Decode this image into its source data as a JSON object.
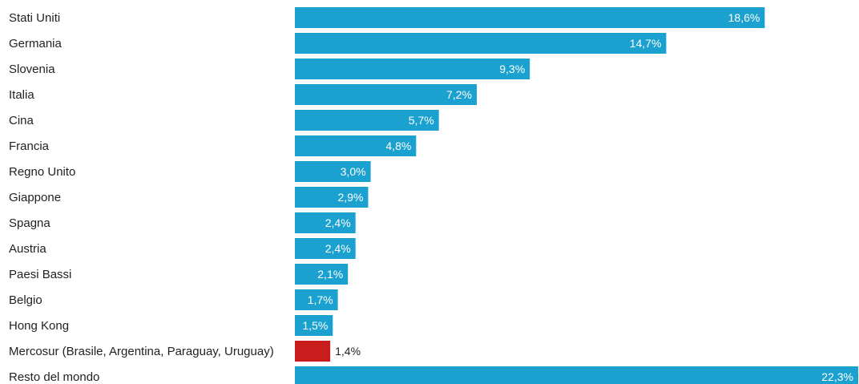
{
  "chart_data": {
    "type": "bar",
    "orientation": "horizontal",
    "title": "",
    "xlabel": "",
    "ylabel": "",
    "xlim": [
      0,
      22.3
    ],
    "grid": false,
    "legend": "none",
    "categories": [
      "Stati Uniti",
      "Germania",
      "Slovenia",
      "Italia",
      "Cina",
      "Francia",
      "Regno Unito",
      "Giappone",
      "Spagna",
      "Austria",
      "Paesi Bassi",
      "Belgio",
      "Hong Kong",
      "Mercosur (Brasile, Argentina, Paraguay, Uruguay)",
      "Resto del mondo"
    ],
    "values": [
      18.6,
      14.7,
      9.3,
      7.2,
      5.7,
      4.8,
      3.0,
      2.9,
      2.4,
      2.4,
      2.1,
      1.7,
      1.5,
      1.4,
      22.3
    ],
    "value_labels": [
      "18,6%",
      "14,7%",
      "9,3%",
      "7,2%",
      "5,7%",
      "4,8%",
      "3,0%",
      "2,9%",
      "2,4%",
      "2,4%",
      "2,1%",
      "1,7%",
      "1,5%",
      "1,4%",
      "22,3%"
    ],
    "highlight_index": 13,
    "colors": {
      "bar": "#1aa1cf",
      "highlight": "#c91d1d",
      "label_inside": "#ffffff",
      "label_outside": "#222222",
      "category_text": "#222222"
    }
  }
}
